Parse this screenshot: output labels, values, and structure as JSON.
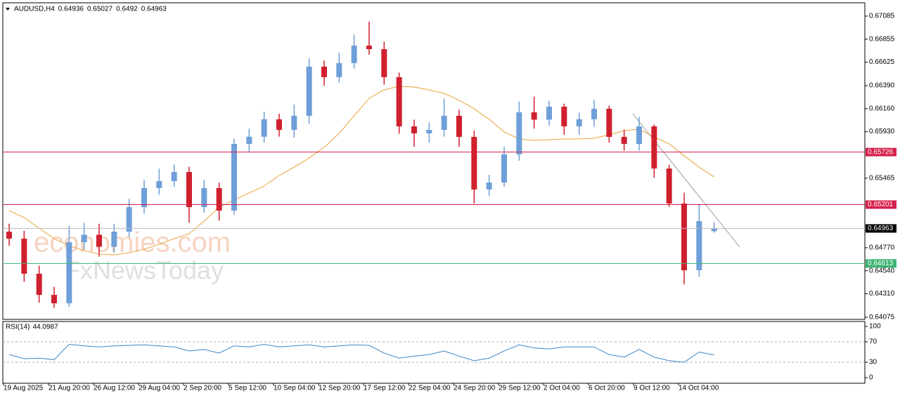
{
  "chart_data": {
    "type": "candlestick",
    "symbol": "AUDUSD,H4",
    "up_color": "#6f9fd8",
    "down_color": "#d0202e",
    "ylim": [
      0.64054,
      0.67218
    ],
    "yticks": [
      0.67085,
      0.66855,
      0.66625,
      {
        "value": 0.6639,
        "label": "0.66390"
      },
      {
        "value": 0.6616,
        "label": "0.66160"
      },
      {
        "value": 0.6593,
        "label": "0.65930"
      },
      0.65465,
      {
        "value": 0.6477,
        "label": "0.64770"
      },
      {
        "value": 0.6454,
        "label": "0.64540"
      },
      {
        "value": 0.6431,
        "label": "0.64310"
      },
      0.64075
    ],
    "categories": [
      "19 Aug 2025",
      null,
      null,
      "21 Aug 20:00",
      null,
      null,
      "26 Aug 12:00",
      null,
      null,
      "29 Aug 04:00",
      null,
      null,
      "2 Sep 20:00",
      null,
      null,
      "5 Sep 12:00",
      null,
      null,
      "10 Sep 04:00",
      null,
      null,
      "12 Sep 20:00",
      null,
      null,
      "17 Sep 12:00",
      null,
      null,
      "22 Sep 04:00",
      null,
      null,
      "24 Sep 20:00",
      null,
      null,
      "29 Sep 12:00",
      null,
      null,
      "2 Oct 04:00",
      null,
      null,
      "6 Oct 20:00",
      null,
      null,
      "9 Oct 12:00",
      null,
      null,
      "14 Oct 04:00",
      null,
      null
    ],
    "open": [
      0.6493,
      0.64861,
      0.6451,
      0.64299,
      0.64215,
      0.64826,
      0.649,
      0.6478,
      0.64931,
      0.65176,
      0.65366,
      0.65436,
      0.65527,
      0.65176,
      0.65366,
      0.65141,
      0.65808,
      0.6588,
      0.66054,
      0.65948,
      0.66089,
      0.6658,
      0.66475,
      0.66615,
      0.6679,
      0.66755,
      0.66475,
      0.65983,
      0.65913,
      0.65948,
      0.66089,
      0.65878,
      0.65352,
      0.65422,
      0.65703,
      0.66124,
      0.6605,
      0.6618,
      0.65983,
      0.66054,
      0.66159,
      0.65878,
      0.65808,
      0.65983,
      0.65562,
      0.65212,
      0.64545,
      0.64936
    ],
    "high": [
      0.6501,
      0.6494,
      0.6459,
      0.6438,
      0.6499,
      0.6502,
      0.6501,
      0.6501,
      0.6526,
      0.6545,
      0.6556,
      0.656,
      0.6558,
      0.6545,
      0.6542,
      0.6586,
      0.6596,
      0.6613,
      0.6611,
      0.662,
      0.6666,
      0.6664,
      0.6672,
      0.669,
      0.6703,
      0.6683,
      0.6652,
      0.6605,
      0.6602,
      0.6626,
      0.6615,
      0.6594,
      0.655,
      0.6578,
      0.6623,
      0.6628,
      0.6624,
      0.6621,
      0.6612,
      0.6625,
      0.6619,
      0.6595,
      0.6608,
      0.66,
      0.656,
      0.6532,
      0.6521,
      0.65027
    ],
    "low": [
      0.6479,
      0.6443,
      0.6422,
      0.6417,
      0.6418,
      0.6475,
      0.6468,
      0.6472,
      0.6488,
      0.6511,
      0.653,
      0.6538,
      0.6502,
      0.6512,
      0.6504,
      0.651,
      0.6572,
      0.6582,
      0.6588,
      0.6587,
      0.6601,
      0.6639,
      0.6642,
      0.6656,
      0.667,
      0.664,
      0.6591,
      0.6578,
      0.6582,
      0.6588,
      0.6578,
      0.65211,
      0.6529,
      0.6538,
      0.6564,
      0.6596,
      0.6599,
      0.659,
      0.659,
      0.6598,
      0.6582,
      0.6574,
      0.6574,
      0.6547,
      0.6518,
      0.64404,
      0.6448,
      0.6492
    ],
    "close": [
      0.64861,
      0.6451,
      0.64299,
      0.64215,
      0.64826,
      0.649,
      0.6478,
      0.64931,
      0.65176,
      0.65366,
      0.65436,
      0.65527,
      0.65176,
      0.65366,
      0.65141,
      0.65808,
      0.6588,
      0.66054,
      0.65948,
      0.66089,
      0.6658,
      0.66475,
      0.66615,
      0.6679,
      0.66755,
      0.66475,
      0.65983,
      0.65913,
      0.65948,
      0.66089,
      0.65878,
      0.65352,
      0.65422,
      0.65703,
      0.66124,
      0.6605,
      0.6618,
      0.65983,
      0.66054,
      0.66159,
      0.65878,
      0.65808,
      0.65983,
      0.65562,
      0.65212,
      0.64545,
      0.65036,
      0.64963
    ],
    "ma": {
      "color": "#e8a33a",
      "values": [
        0.65141,
        0.65071,
        0.64966,
        0.64861,
        0.6479,
        0.64741,
        0.64706,
        0.64699,
        0.6472,
        0.64755,
        0.64805,
        0.64861,
        0.6491,
        0.65036,
        0.65176,
        0.65247,
        0.65317,
        0.65387,
        0.65492,
        0.65576,
        0.65668,
        0.65773,
        0.65913,
        0.66089,
        0.66264,
        0.66348,
        0.66383,
        0.66376,
        0.66348,
        0.66313,
        0.66243,
        0.66159,
        0.66054,
        0.65927,
        0.65857,
        0.65843,
        0.6585,
        0.65857,
        0.65857,
        0.65864,
        0.65899,
        0.65941,
        0.65955,
        0.65878,
        0.65808,
        0.65689,
        0.65576,
        0.65478
      ]
    },
    "levels": [
      {
        "value": 0.65726,
        "color": "#d6204a"
      },
      {
        "value": 0.65201,
        "color": "#d6204a"
      },
      {
        "value": 0.64963,
        "color": "#000000"
      },
      {
        "value": 0.64613,
        "color": "#3cb371"
      }
    ],
    "watermark": [
      "economies.com",
      "FxNewsToday"
    ],
    "rsi": {
      "label": "RSI(14)",
      "color": "#3d85c6",
      "ylim": [
        -11,
        109.6
      ],
      "yticks": [
        100,
        70,
        30,
        0
      ],
      "levels": [
        70,
        30
      ],
      "values": [
        45,
        37,
        38,
        35,
        65,
        62,
        60,
        62,
        63,
        64,
        62,
        60,
        52,
        55,
        48,
        62,
        60,
        65,
        60,
        62,
        64,
        60,
        62,
        64,
        63,
        48,
        38,
        42,
        45,
        52,
        42,
        33,
        38,
        52,
        64,
        58,
        56,
        60,
        60,
        60,
        45,
        40,
        55,
        40,
        33,
        30,
        50,
        44.0987
      ]
    }
  }
}
